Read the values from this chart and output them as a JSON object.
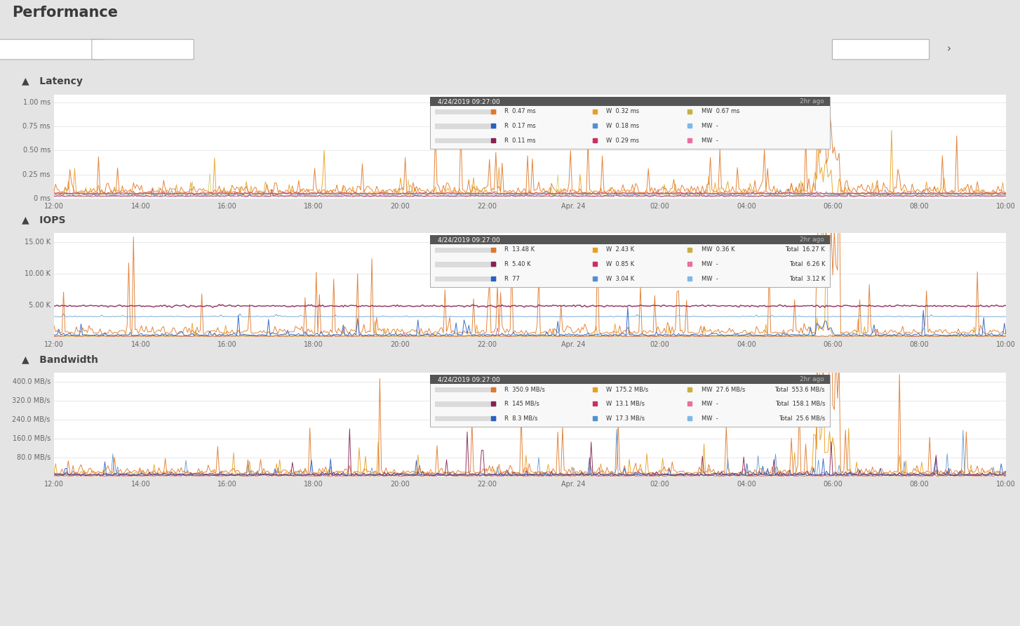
{
  "title": "Performance",
  "bg_color": "#e8e8e8",
  "panel_bg": "#ffffff",
  "section_header_bg": "#f5f5f5",
  "x_labels": [
    "12:00",
    "14:00",
    "16:00",
    "18:00",
    "20:00",
    "22:00",
    "Apr. 24",
    "02:00",
    "04:00",
    "06:00",
    "08:00",
    "10:00"
  ],
  "latency": {
    "title": "Latency",
    "yticks": [
      0.0,
      0.25,
      0.5,
      0.75,
      1.0
    ],
    "ylabels": [
      "0 ms",
      "0.25 ms",
      "0.50 ms",
      "0.75 ms",
      "1.00 ms"
    ],
    "ylim": [
      0.0,
      1.08
    ],
    "tooltip": {
      "time": "4/24/2019 09:27:00",
      "ago": "2hr ago",
      "row1": {
        "r": "0.47 ms",
        "w": "0.32 ms",
        "mw": "0.67 ms"
      },
      "row2": {
        "r": "0.17 ms",
        "w": "0.18 ms",
        "mw": "-"
      },
      "row3": {
        "r": "0.11 ms",
        "w": "0.29 ms",
        "mw": "-"
      }
    }
  },
  "iops": {
    "title": "IOPS",
    "yticks": [
      0,
      5000,
      10000,
      15000
    ],
    "ylabels": [
      "",
      "5.00 K",
      "10.00 K",
      "15.00 K"
    ],
    "ylim": [
      0,
      16500
    ],
    "tooltip": {
      "time": "4/24/2019 09:27:00",
      "ago": "2hr ago",
      "row1": {
        "r": "13.48 K",
        "w": "2.43 K",
        "mw": "0.36 K",
        "total": "16.27 K"
      },
      "row2": {
        "r": "5.40 K",
        "w": "0.85 K",
        "mw": "-",
        "total": "6.26 K"
      },
      "row3": {
        "r": "77",
        "w": "3.04 K",
        "mw": "-",
        "total": "3.12 K"
      }
    }
  },
  "bandwidth": {
    "title": "Bandwidth",
    "yticks": [
      0,
      80,
      160,
      240,
      320,
      400
    ],
    "ylabels": [
      "",
      "80.0 MB/s",
      "160.0 MB/s",
      "240.0 MB/s",
      "320.0 MB/s",
      "400.0 MB/s"
    ],
    "ylim": [
      0,
      440
    ],
    "tooltip": {
      "time": "4/24/2019 09:27:00",
      "ago": "2hr ago",
      "row1": {
        "r": "350.9 MB/s",
        "w": "175.2 MB/s",
        "mw": "27.6 MB/s",
        "total": "553.6 MB/s"
      },
      "row2": {
        "r": "145 MB/s",
        "w": "13.1 MB/s",
        "mw": "-",
        "total": "158.1 MB/s"
      },
      "row3": {
        "r": "8.3 MB/s",
        "w": "17.3 MB/s",
        "mw": "-",
        "total": "25.6 MB/s"
      }
    }
  },
  "series_colors": {
    "lat": {
      "r1": "#e07828",
      "w1": "#e8a020",
      "mw1": "#c8b040",
      "r2": "#2860c0",
      "w2": "#5090d0",
      "mw2": "#80b8e8",
      "r3": "#882050",
      "w3": "#c83060",
      "mw3": "#e870a0"
    },
    "iops": {
      "r1": "#e07828",
      "w1": "#e8a020",
      "mw1": "#c8b040",
      "r2": "#882050",
      "w2": "#c83060",
      "mw2": "#e870a0",
      "r3": "#2860c0",
      "w3": "#5090d0",
      "mw3": "#80b8e8"
    },
    "bw": {
      "r1": "#e07828",
      "w1": "#e8a020",
      "mw1": "#c8b040",
      "r2": "#882050",
      "w2": "#c83060",
      "mw2": "#e870a0",
      "r3": "#2860c0",
      "w3": "#5090d0",
      "mw3": "#80b8e8"
    }
  },
  "tooltip_colors": {
    "lat": [
      [
        "#e07828",
        "#e8a020",
        "#c8b040"
      ],
      [
        "#2860c0",
        "#5090d0",
        "#80b8e8"
      ],
      [
        "#882050",
        "#c83060",
        "#e870a0"
      ]
    ],
    "iops": [
      [
        "#e07828",
        "#e8a020",
        "#c8b040"
      ],
      [
        "#882050",
        "#c83060",
        "#e870a0"
      ],
      [
        "#2860c0",
        "#5090d0",
        "#80b8e8"
      ]
    ],
    "bw": [
      [
        "#e07828",
        "#e8a020",
        "#c8b040"
      ],
      [
        "#882050",
        "#c83060",
        "#e870a0"
      ],
      [
        "#2860c0",
        "#5090d0",
        "#80b8e8"
      ]
    ]
  }
}
